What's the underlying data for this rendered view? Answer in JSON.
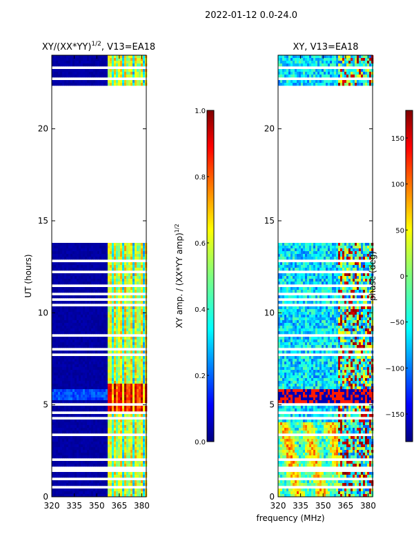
{
  "suptitle": "2022-01-12 0.0-24.0",
  "xlabel": "frequency (MHz)",
  "chart_data": [
    {
      "type": "heatmap",
      "title_main": "XY/(XX*YY)",
      "title_exp": "1/2",
      "title_rest": ", V13=EA18",
      "ylabel": "UT (hours)",
      "xlim": [
        320,
        383
      ],
      "ylim": [
        0,
        24
      ],
      "xticks": [
        320,
        335,
        350,
        365,
        380
      ],
      "xticklabels": [
        "320",
        "335",
        "350",
        "365",
        "380"
      ],
      "yticks": [
        0,
        5,
        10,
        15,
        20
      ],
      "yticklabels": [
        "0",
        "5",
        "10",
        "15",
        "20"
      ],
      "data_gap_hours": [
        22.4,
        13.8
      ],
      "colorbar": {
        "label_main": "XY amp. / (XX*YY amp)",
        "label_exp": "1/2",
        "range": [
          0.0,
          1.0
        ],
        "ticks": [
          0.0,
          0.2,
          0.4,
          0.6,
          0.8,
          1.0
        ],
        "ticklabels": [
          "0.0",
          "0.2",
          "0.4",
          "0.6",
          "0.8",
          "1.0"
        ]
      }
    },
    {
      "type": "heatmap",
      "title": "XY, V13=EA18",
      "xlim": [
        320,
        383
      ],
      "ylim": [
        0,
        24
      ],
      "xticks": [
        320,
        335,
        350,
        365,
        380
      ],
      "xticklabels": [
        "320",
        "335",
        "350",
        "365",
        "380"
      ],
      "yticks": [
        0,
        5,
        10,
        15,
        20
      ],
      "yticklabels": [
        "0",
        "5",
        "10",
        "15",
        "20"
      ],
      "data_gap_hours": [
        22.4,
        13.8
      ],
      "colorbar": {
        "label": "phase (deg)",
        "range": [
          -180,
          180
        ],
        "ticks": [
          -150,
          -100,
          -50,
          0,
          50,
          100,
          150
        ],
        "ticklabels": [
          "−150",
          "−100",
          "−50",
          "0",
          "50",
          "100",
          "150"
        ]
      }
    }
  ]
}
